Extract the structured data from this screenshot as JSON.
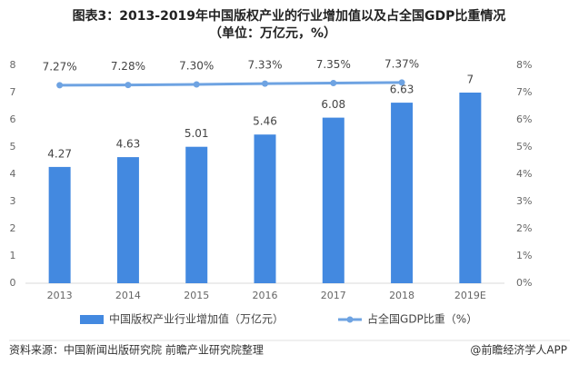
{
  "chart_data": {
    "type": "bar-line",
    "title": "图表3：2013-2019年中国版权产业的行业增加值以及占全国GDP比重情况",
    "subtitle": "（单位：万亿元，%）",
    "categories": [
      "2013",
      "2014",
      "2015",
      "2016",
      "2017",
      "2018",
      "2019E"
    ],
    "series": [
      {
        "name": "中国版权产业行业增加值（万亿元）",
        "color": "#4389e0",
        "type": "bar",
        "axis": "y",
        "values": [
          4.27,
          4.63,
          5.01,
          5.46,
          6.08,
          6.63,
          7
        ]
      },
      {
        "name": "占全国GDP比重（%）",
        "color": "#6ea3e2",
        "type": "line",
        "axis": "y2",
        "values": [
          7.27,
          7.28,
          7.3,
          7.33,
          7.35,
          7.37,
          null
        ],
        "value_labels": [
          "7.27%",
          "7.28%",
          "7.30%",
          "7.33%",
          "7.35%",
          "7.37%",
          null
        ]
      }
    ],
    "ylim": [
      0,
      8
    ],
    "yticks": [
      0,
      1,
      2,
      3,
      4,
      5,
      6,
      7,
      8
    ],
    "y2lim": [
      0,
      8
    ],
    "y2ticks": [
      {
        "value": 0,
        "label": "0%"
      },
      {
        "value": 1,
        "label": "1%"
      },
      {
        "value": 2,
        "label": "2%"
      },
      {
        "value": 3,
        "label": "3%"
      },
      {
        "value": 4,
        "label": "4%"
      },
      {
        "value": 5,
        "label": "5%"
      },
      {
        "value": 6,
        "label": "6%"
      },
      {
        "value": 7,
        "label": "7%"
      },
      {
        "value": 8,
        "label": "8%"
      }
    ],
    "grid": false,
    "source": "资料来源：中国新闻出版研究院 前瞻产业研究院整理",
    "credit": "@前瞻经济学人APP"
  }
}
